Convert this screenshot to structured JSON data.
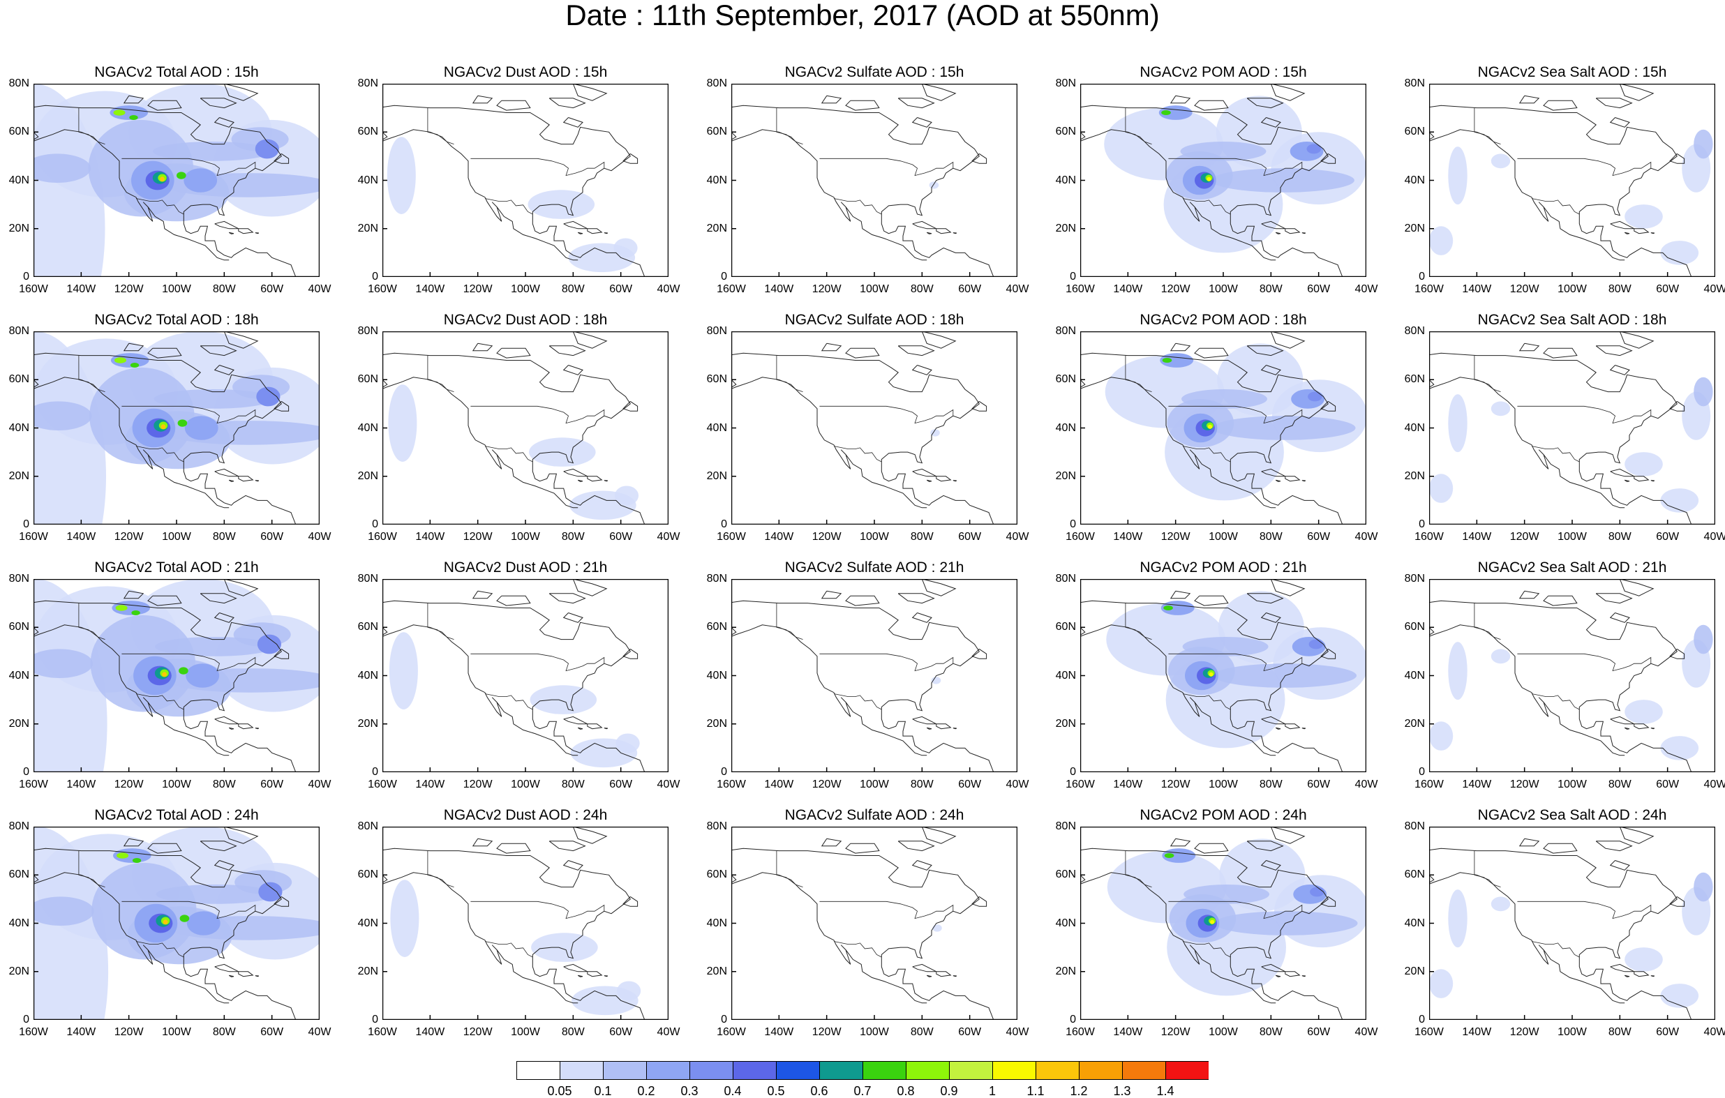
{
  "figure": {
    "title": "Date : 11th September, 2017 (AOD at 550nm)"
  },
  "axes": {
    "y_ticks": [
      "80N",
      "60N",
      "40N",
      "20N",
      "0"
    ],
    "x_ticks": [
      "160W",
      "140W",
      "120W",
      "100W",
      "80W",
      "60W",
      "40W"
    ]
  },
  "panel_titles": [
    [
      "NGACv2 Total AOD : 15h",
      "NGACv2 Dust AOD : 15h",
      "NGACv2 Sulfate AOD : 15h",
      "NGACv2 POM AOD : 15h",
      "NGACv2 Sea Salt AOD : 15h"
    ],
    [
      "NGACv2 Total AOD : 18h",
      "NGACv2 Dust AOD : 18h",
      "NGACv2 Sulfate AOD : 18h",
      "NGACv2 POM AOD : 18h",
      "NGACv2 Sea Salt AOD : 18h"
    ],
    [
      "NGACv2 Total AOD : 21h",
      "NGACv2 Dust AOD : 21h",
      "NGACv2 Sulfate AOD : 21h",
      "NGACv2 POM AOD : 21h",
      "NGACv2 Sea Salt AOD : 21h"
    ],
    [
      "NGACv2 Total AOD : 24h",
      "NGACv2 Dust AOD : 24h",
      "NGACv2 Sulfate AOD : 24h",
      "NGACv2 POM AOD : 24h",
      "NGACv2 Sea Salt  AOD : 24h"
    ]
  ],
  "colorbar": {
    "labels": [
      "0.05",
      "0.1",
      "0.2",
      "0.3",
      "0.4",
      "0.5",
      "0.6",
      "0.7",
      "0.8",
      "0.9",
      "1",
      "1.1",
      "1.2",
      "1.3",
      "1.4"
    ],
    "colors": [
      "#ffffff",
      "#d4ddfa",
      "#b0c0f5",
      "#8fa6f4",
      "#7b8ff0",
      "#5c67e8",
      "#1d56e6",
      "#0f9a8f",
      "#3ad30f",
      "#8ef50a",
      "#c3f23e",
      "#f9f900",
      "#fbc60a",
      "#f8a005",
      "#f57a0b",
      "#f21313"
    ]
  }
}
